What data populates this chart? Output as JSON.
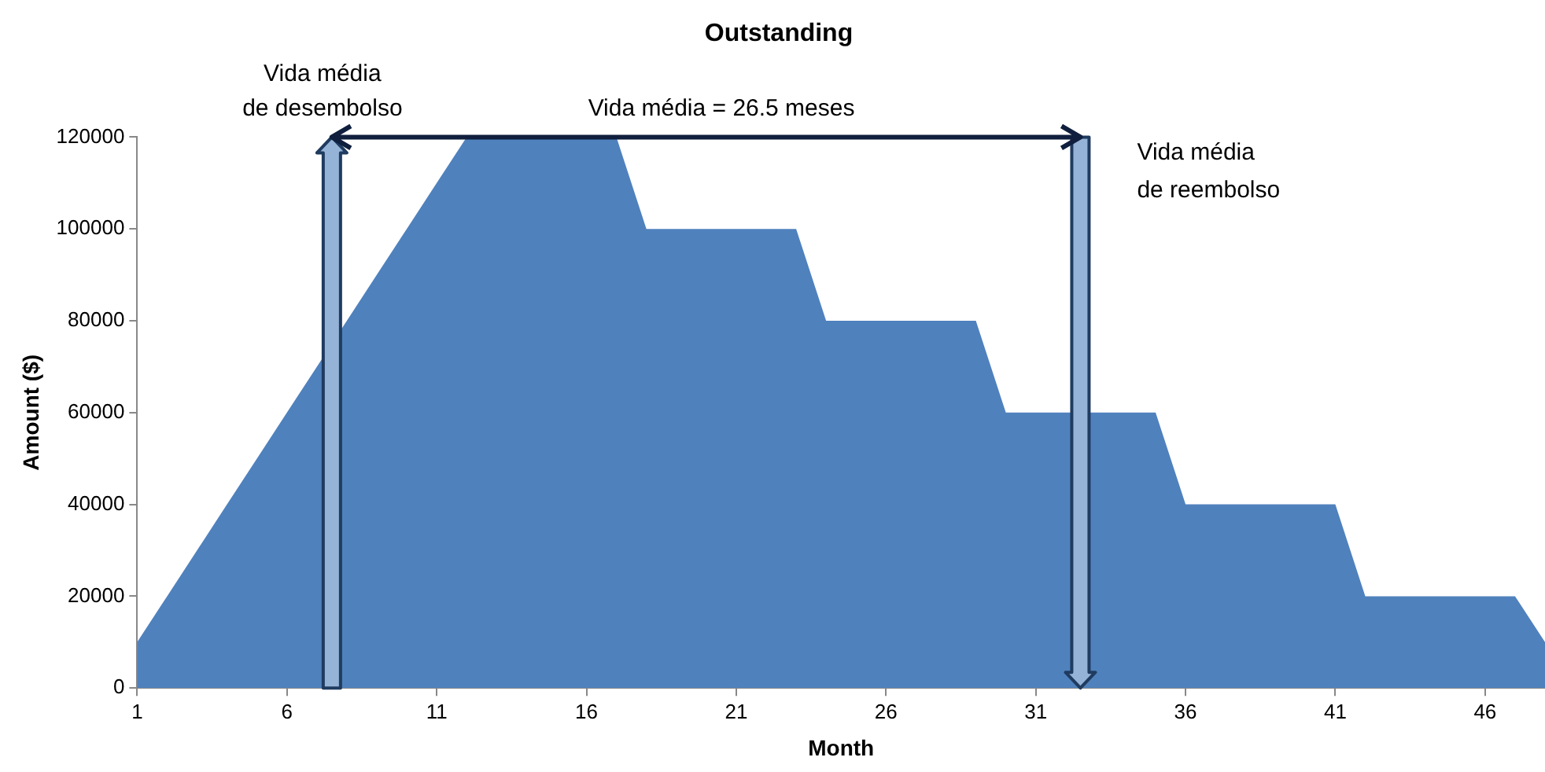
{
  "chart_data": {
    "type": "area",
    "title": "Outstanding",
    "xlabel": "Month",
    "ylabel": "Amount ($)",
    "x": [
      1,
      2,
      3,
      4,
      5,
      6,
      7,
      8,
      9,
      10,
      11,
      12,
      13,
      14,
      15,
      16,
      17,
      18,
      19,
      20,
      21,
      22,
      23,
      24,
      25,
      26,
      27,
      28,
      29,
      30,
      31,
      32,
      33,
      34,
      35,
      36,
      37,
      38,
      39,
      40,
      41,
      42,
      43,
      44,
      45,
      46,
      47,
      48
    ],
    "values": [
      10000,
      20000,
      30000,
      40000,
      50000,
      60000,
      70000,
      80000,
      90000,
      100000,
      110000,
      120000,
      120000,
      120000,
      120000,
      120000,
      120000,
      100000,
      100000,
      100000,
      100000,
      100000,
      100000,
      80000,
      80000,
      80000,
      80000,
      80000,
      80000,
      60000,
      60000,
      60000,
      60000,
      60000,
      60000,
      40000,
      40000,
      40000,
      40000,
      40000,
      40000,
      20000,
      20000,
      20000,
      20000,
      20000,
      20000,
      10000
    ],
    "color": "#4f81bd",
    "xlim": [
      1,
      48
    ],
    "xticks": [
      1,
      6,
      11,
      16,
      21,
      26,
      31,
      36,
      41,
      46
    ],
    "ylim": [
      0,
      120000
    ],
    "yticks": [
      0,
      20000,
      40000,
      60000,
      80000,
      100000,
      120000
    ],
    "grid": false,
    "legend": false,
    "annotations": [
      "Vida média\nde desembolso",
      "Vida média\nde reembolso",
      "Vida média = 26.5 meses"
    ]
  }
}
